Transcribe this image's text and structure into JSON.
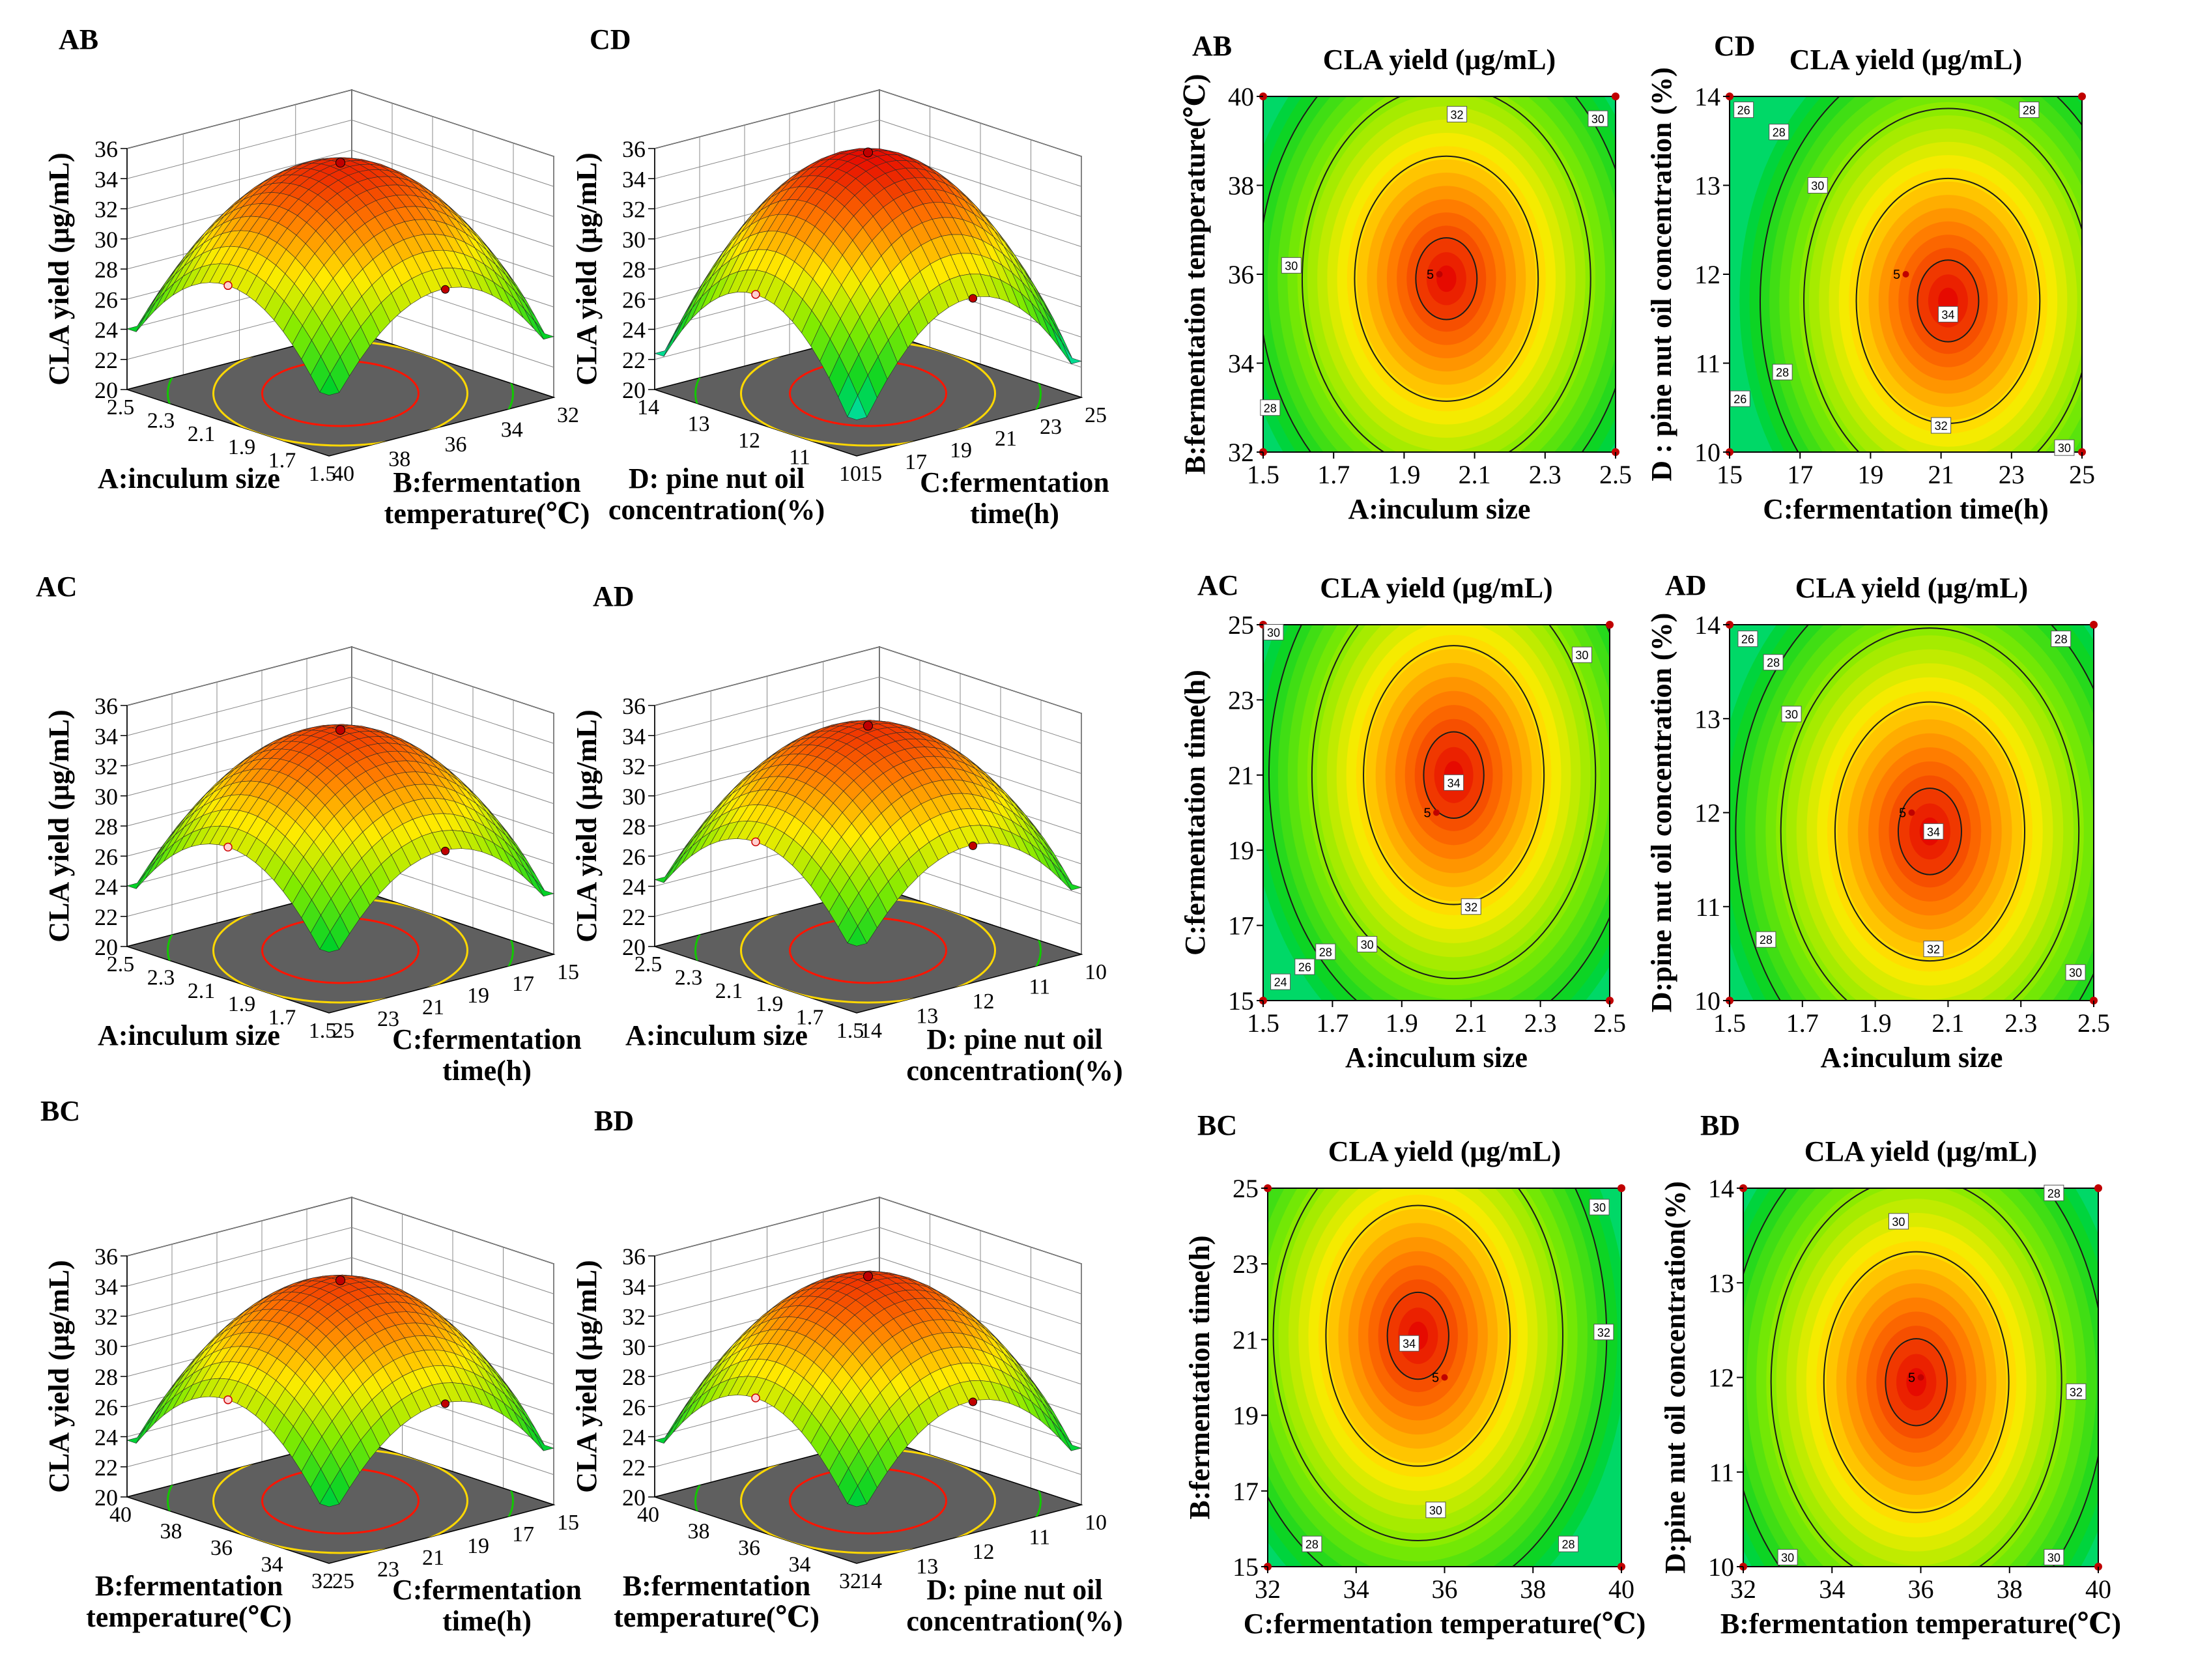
{
  "colors": {
    "surface_high": "#b31b00",
    "surface_mid": "#e6d200",
    "surface_low": "#00e0ff",
    "contour_high": "#ff1400",
    "contour_mid": "#ffd800",
    "contour_low": "#12c800",
    "floor": "#5f5f5f",
    "design_point": "#c00000"
  },
  "surface_plots": [
    {
      "panel": "AB",
      "zlabel": "CLA yield (μg/mL)",
      "zticks": [
        "20",
        "22",
        "24",
        "26",
        "28",
        "30",
        "32",
        "34",
        "36"
      ],
      "left_axis": {
        "label_lines": [
          "A:inculum size"
        ],
        "ticks": [
          "2.5",
          "2.3",
          "2.1",
          "1.9",
          "1.7",
          "1.5"
        ]
      },
      "right_axis": {
        "label_lines": [
          "B:fermentation",
          "temperature(℃)"
        ],
        "ticks": [
          "40",
          "38",
          "36",
          "34",
          "32"
        ]
      }
    },
    {
      "panel": "CD",
      "zlabel": "CLA yield (μg/mL)",
      "zticks": [
        "20",
        "22",
        "24",
        "26",
        "28",
        "30",
        "32",
        "34",
        "36"
      ],
      "left_axis": {
        "label_lines": [
          "D: pine nut oil",
          "concentration(%)"
        ],
        "ticks": [
          "14",
          "13",
          "12",
          "11",
          "10"
        ]
      },
      "right_axis": {
        "label_lines": [
          "C:fermentation",
          "time(h)"
        ],
        "ticks": [
          "15",
          "17",
          "19",
          "21",
          "23",
          "25"
        ]
      }
    },
    {
      "panel": "AC",
      "zlabel": "CLA yield (μg/mL)",
      "zticks": [
        "20",
        "22",
        "24",
        "26",
        "28",
        "30",
        "32",
        "34",
        "36"
      ],
      "left_axis": {
        "label_lines": [
          "A:inculum size"
        ],
        "ticks": [
          "2.5",
          "2.3",
          "2.1",
          "1.9",
          "1.7",
          "1.5"
        ]
      },
      "right_axis": {
        "label_lines": [
          "C:fermentation",
          "time(h)"
        ],
        "ticks": [
          "25",
          "23",
          "21",
          "19",
          "17",
          "15"
        ]
      }
    },
    {
      "panel": "AD",
      "zlabel": "CLA yield (μg/mL)",
      "zticks": [
        "20",
        "22",
        "24",
        "26",
        "28",
        "30",
        "32",
        "34",
        "36"
      ],
      "left_axis": {
        "label_lines": [
          "A:inculum size"
        ],
        "ticks": [
          "2.5",
          "2.3",
          "2.1",
          "1.9",
          "1.7",
          "1.5"
        ]
      },
      "right_axis": {
        "label_lines": [
          "D: pine nut oil",
          "concentration(%)"
        ],
        "ticks": [
          "14",
          "13",
          "12",
          "11",
          "10"
        ]
      }
    },
    {
      "panel": "BC",
      "zlabel": "CLA yield (μg/mL)",
      "zticks": [
        "20",
        "22",
        "24",
        "26",
        "28",
        "30",
        "32",
        "34",
        "36"
      ],
      "left_axis": {
        "label_lines": [
          "B:fermentation",
          "temperature(℃)"
        ],
        "ticks": [
          "40",
          "38",
          "36",
          "34",
          "32"
        ]
      },
      "right_axis": {
        "label_lines": [
          "C:fermentation",
          "time(h)"
        ],
        "ticks": [
          "25",
          "23",
          "21",
          "19",
          "17",
          "15"
        ]
      }
    },
    {
      "panel": "BD",
      "zlabel": "CLA yield (μg/mL)",
      "zticks": [
        "20",
        "22",
        "24",
        "26",
        "28",
        "30",
        "32",
        "34",
        "36"
      ],
      "left_axis": {
        "label_lines": [
          "B:fermentation",
          "temperature(℃)"
        ],
        "ticks": [
          "40",
          "38",
          "36",
          "34",
          "32"
        ]
      },
      "right_axis": {
        "label_lines": [
          "D: pine nut oil",
          "concentration(%)"
        ],
        "ticks": [
          "14",
          "13",
          "12",
          "11",
          "10"
        ]
      }
    }
  ],
  "chart_data": [
    {
      "type": "heatmap",
      "panel": "AB",
      "title": "CLA yield (μg/mL)",
      "xlabel": "A:inculum size",
      "ylabel": "B:fermentation temperature(℃)",
      "xlim": [
        1.5,
        2.5
      ],
      "ylim": [
        32,
        40
      ],
      "xticks": [
        "1.5",
        "1.7",
        "1.9",
        "2.1",
        "2.3",
        "2.5"
      ],
      "yticks": [
        "32",
        "34",
        "36",
        "38",
        "40"
      ],
      "center": [
        2.0,
        36.0
      ],
      "center_label": "5",
      "optimum": [
        2.02,
        35.9
      ],
      "peak_value": 33.6,
      "contour_labels": [
        {
          "value": "32",
          "x": 2.05,
          "y": 39.6
        },
        {
          "value": "30",
          "x": 2.45,
          "y": 39.5
        },
        {
          "value": "30",
          "x": 1.58,
          "y": 36.2
        },
        {
          "value": "28",
          "x": 1.52,
          "y": 33.0
        }
      ]
    },
    {
      "type": "heatmap",
      "panel": "CD",
      "title": "CLA yield (μg/mL)",
      "xlabel": "C:fermentation time(h)",
      "ylabel": "D : pine nut oil concentration (%)",
      "xlim": [
        15,
        25
      ],
      "ylim": [
        10,
        14
      ],
      "xticks": [
        "15",
        "17",
        "19",
        "21",
        "23",
        "25"
      ],
      "yticks": [
        "10",
        "11",
        "12",
        "13",
        "14"
      ],
      "center": [
        20,
        12
      ],
      "center_label": "5",
      "optimum": [
        21.2,
        11.7
      ],
      "peak_value": 34.3,
      "contour_labels": [
        {
          "value": "34",
          "x": 21.2,
          "y": 11.55
        },
        {
          "value": "32",
          "x": 21.0,
          "y": 10.3
        },
        {
          "value": "30",
          "x": 24.5,
          "y": 10.05
        },
        {
          "value": "28",
          "x": 16.5,
          "y": 10.9
        },
        {
          "value": "26",
          "x": 15.3,
          "y": 10.6
        },
        {
          "value": "30",
          "x": 17.5,
          "y": 13.0
        },
        {
          "value": "28",
          "x": 16.4,
          "y": 13.6
        },
        {
          "value": "26",
          "x": 15.4,
          "y": 13.85
        },
        {
          "value": "28",
          "x": 23.5,
          "y": 13.85
        }
      ]
    },
    {
      "type": "heatmap",
      "panel": "AC",
      "title": "CLA yield (μg/mL)",
      "xlabel": "A:inculum size",
      "ylabel": "C:fermentation time(h)",
      "xlim": [
        1.5,
        2.5
      ],
      "ylim": [
        15,
        25
      ],
      "xticks": [
        "1.5",
        "1.7",
        "1.9",
        "2.1",
        "2.3",
        "2.5"
      ],
      "yticks": [
        "15",
        "17",
        "19",
        "21",
        "23",
        "25"
      ],
      "center": [
        2.0,
        20.0
      ],
      "center_label": "5",
      "optimum": [
        2.05,
        21.0
      ],
      "peak_value": 34.3,
      "contour_labels": [
        {
          "value": "34",
          "x": 2.05,
          "y": 20.8
        },
        {
          "value": "32",
          "x": 2.1,
          "y": 17.5
        },
        {
          "value": "30",
          "x": 1.8,
          "y": 16.5
        },
        {
          "value": "28",
          "x": 1.68,
          "y": 16.3
        },
        {
          "value": "26",
          "x": 1.62,
          "y": 15.9
        },
        {
          "value": "24",
          "x": 1.55,
          "y": 15.5
        },
        {
          "value": "30",
          "x": 2.42,
          "y": 24.2
        },
        {
          "value": "30",
          "x": 1.53,
          "y": 24.8
        }
      ]
    },
    {
      "type": "heatmap",
      "panel": "AD",
      "title": "CLA yield (μg/mL)",
      "xlabel": "A:inculum size",
      "ylabel": "D:pine nut oil concentration (%)",
      "xlim": [
        1.5,
        2.5
      ],
      "ylim": [
        10,
        14
      ],
      "xticks": [
        "1.5",
        "1.7",
        "1.9",
        "2.1",
        "2.3",
        "2.5"
      ],
      "yticks": [
        "10",
        "11",
        "12",
        "13",
        "14"
      ],
      "center": [
        2.0,
        12.0
      ],
      "center_label": "5",
      "optimum": [
        2.05,
        11.8
      ],
      "peak_value": 34.2,
      "contour_labels": [
        {
          "value": "34",
          "x": 2.06,
          "y": 11.8
        },
        {
          "value": "32",
          "x": 2.06,
          "y": 10.55
        },
        {
          "value": "30",
          "x": 2.45,
          "y": 10.3
        },
        {
          "value": "28",
          "x": 1.6,
          "y": 10.65
        },
        {
          "value": "30",
          "x": 1.67,
          "y": 13.05
        },
        {
          "value": "28",
          "x": 1.62,
          "y": 13.6
        },
        {
          "value": "26",
          "x": 1.55,
          "y": 13.85
        },
        {
          "value": "28",
          "x": 2.41,
          "y": 13.85
        }
      ]
    },
    {
      "type": "heatmap",
      "panel": "BC",
      "title": "CLA yield (μg/mL)",
      "xlabel": "C:fermentation temperature(℃)",
      "ylabel": "B:fermentation time(h)",
      "xlim": [
        32,
        40
      ],
      "ylim": [
        15,
        25
      ],
      "xticks": [
        "32",
        "34",
        "36",
        "38",
        "40"
      ],
      "yticks": [
        "15",
        "17",
        "19",
        "21",
        "23",
        "25"
      ],
      "center": [
        36,
        20
      ],
      "center_label": "5",
      "optimum": [
        35.4,
        21.1
      ],
      "peak_value": 34.2,
      "contour_labels": [
        {
          "value": "34",
          "x": 35.2,
          "y": 20.9
        },
        {
          "value": "32",
          "x": 39.6,
          "y": 21.2
        },
        {
          "value": "30",
          "x": 39.5,
          "y": 24.5
        },
        {
          "value": "30",
          "x": 35.8,
          "y": 16.5
        },
        {
          "value": "28",
          "x": 33.0,
          "y": 15.6
        },
        {
          "value": "28",
          "x": 38.8,
          "y": 15.6
        }
      ]
    },
    {
      "type": "heatmap",
      "panel": "BD",
      "title": "CLA yield (μg/mL)",
      "xlabel": "B:fermentation temperature(℃)",
      "ylabel": "D:pine nut oil concentration(%)",
      "xlim": [
        32,
        40
      ],
      "ylim": [
        10,
        14
      ],
      "xticks": [
        "32",
        "34",
        "36",
        "38",
        "40"
      ],
      "yticks": [
        "10",
        "11",
        "12",
        "13",
        "14"
      ],
      "center": [
        36,
        12
      ],
      "center_label": "5",
      "optimum": [
        35.9,
        11.95
      ],
      "peak_value": 33.8,
      "contour_labels": [
        {
          "value": "32",
          "x": 39.5,
          "y": 11.85
        },
        {
          "value": "30",
          "x": 35.5,
          "y": 13.65
        },
        {
          "value": "28",
          "x": 39.0,
          "y": 13.95
        },
        {
          "value": "30",
          "x": 33.0,
          "y": 10.1
        },
        {
          "value": "30",
          "x": 39.0,
          "y": 10.1
        }
      ]
    }
  ]
}
